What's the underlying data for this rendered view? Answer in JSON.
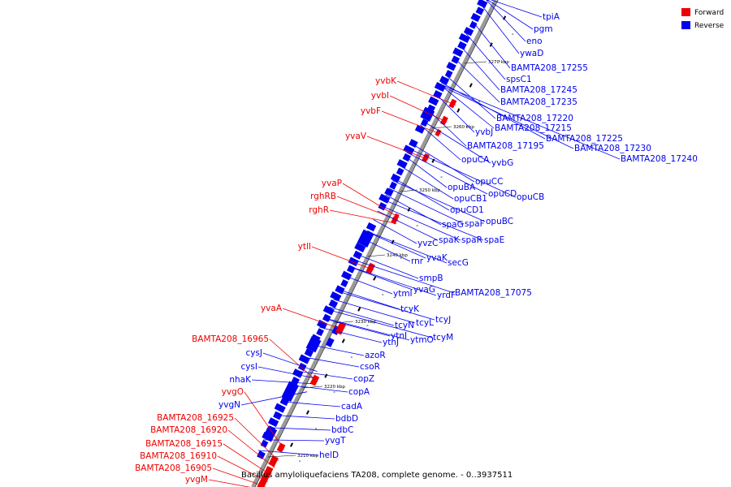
{
  "caption": "Bacillus amyloliquefaciens TA208, complete genome. - 0..3937511",
  "legend": [
    {
      "label": "Forward",
      "color": "#ee0000"
    },
    {
      "label": "Reverse",
      "color": "#0000ee"
    }
  ],
  "colors": {
    "forward": "#ee0000",
    "reverse": "#0000ee",
    "backbone": "#9a9a9a"
  },
  "ticks": [
    "3210 kbp",
    "3220 kbp",
    "3230 kbp",
    "3240 kbp",
    "3250 kbp",
    "3260 kbp",
    "3270 kbp"
  ],
  "forward_genes": [
    "yvbK",
    "yvbI",
    "yvbF",
    "yvaV",
    "yvaP",
    "rghRB",
    "rghR",
    "ytlI",
    "yvaA",
    "BAMTA208_16965",
    "yvgO",
    "BAMTA208_16925",
    "BAMTA208_16920",
    "BAMTA208_16915",
    "BAMTA208_16910",
    "BAMTA208_16905",
    "yvgM"
  ],
  "reverse_left_genes": [
    "cysJ",
    "cysI",
    "nhaK",
    "yvgN"
  ],
  "reverse_genes": [
    "tpiA",
    "pgm",
    "eno",
    "ywaD",
    "BAMTA208_17255",
    "spsC1",
    "BAMTA208_17245",
    "BAMTA208_17235",
    "BAMTA208_17220",
    "BAMTA208_17215",
    "BAMTA208_17225",
    "BAMTA208_17230",
    "BAMTA208_17240",
    "yvbJ",
    "BAMTA208_17195",
    "opuCA",
    "yvbG",
    "opuCC",
    "opuBA",
    "opuCD",
    "opuCB",
    "opuCB1",
    "opuCD1",
    "opuBC",
    "spaG",
    "spaF",
    "spaK",
    "spaR",
    "spaE",
    "yvzC",
    "rnr",
    "yvaK",
    "secG",
    "smpB",
    "ytmI",
    "yvaG",
    "yrdF",
    "BAMTA208_17075",
    "tcyK",
    "tcyJ",
    "tcyN",
    "tcyL",
    "ytnI",
    "ytmO",
    "tcyM",
    "ytnJ",
    "azoR",
    "csoR",
    "copZ",
    "copA",
    "cadA",
    "bdbD",
    "bdbC",
    "yvgT",
    "helD"
  ]
}
